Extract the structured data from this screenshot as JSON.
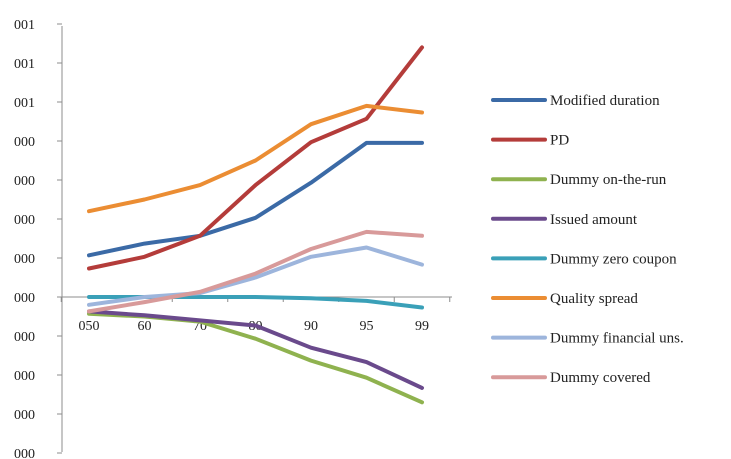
{
  "chart_data": {
    "type": "line",
    "categories": [
      "050",
      "60",
      "70",
      "80",
      "90",
      "95",
      "99"
    ],
    "y_tick_labels": [
      "001",
      "001",
      "001",
      "000",
      "000",
      "000",
      "000",
      "000",
      "000",
      "000",
      "000",
      "000"
    ],
    "y_axis": {
      "min": -4,
      "max": 7,
      "step": 1
    },
    "grid": false,
    "legend_position": "right",
    "series": [
      {
        "name": "Modified duration",
        "color": "#3b6aa6",
        "values": [
          1.07,
          1.37,
          1.57,
          2.03,
          2.93,
          3.95,
          3.95
        ]
      },
      {
        "name": "PD",
        "color": "#b43c3a",
        "values": [
          0.73,
          1.03,
          1.57,
          2.87,
          3.97,
          4.57,
          6.4
        ]
      },
      {
        "name": "Dummy on-the-run",
        "color": "#8fb24f",
        "values": [
          -0.43,
          -0.5,
          -0.63,
          -1.07,
          -1.63,
          -2.07,
          -2.7
        ]
      },
      {
        "name": "Issued amount",
        "color": "#6a4a8c",
        "values": [
          -0.37,
          -0.47,
          -0.6,
          -0.73,
          -1.3,
          -1.67,
          -2.33
        ]
      },
      {
        "name": "Dummy zero coupon",
        "color": "#3aa0b8",
        "values": [
          0.0,
          0.0,
          0.0,
          0.0,
          -0.03,
          -0.1,
          -0.27
        ]
      },
      {
        "name": "Quality spread",
        "color": "#eb8d33",
        "values": [
          2.2,
          2.5,
          2.87,
          3.5,
          4.43,
          4.9,
          4.73
        ]
      },
      {
        "name": "Dummy financial uns.",
        "color": "#9db5dc",
        "values": [
          -0.2,
          0.0,
          0.1,
          0.5,
          1.03,
          1.27,
          0.83
        ]
      },
      {
        "name": "Dummy covered",
        "color": "#d89a9a",
        "values": [
          -0.37,
          -0.13,
          0.13,
          0.6,
          1.23,
          1.67,
          1.57
        ]
      }
    ]
  }
}
